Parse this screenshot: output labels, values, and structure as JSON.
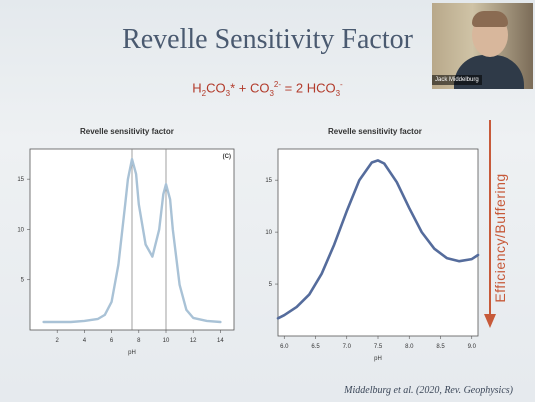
{
  "slide": {
    "title": "Revelle Sensitivity Factor",
    "equation": {
      "h2co3": "H",
      "h2co3_sub": "2",
      "h2co3_mid": "CO",
      "h2co3_sub2": "3",
      "star": "*",
      "plus": " + CO",
      "co3_sub": "3",
      "co3_sup": "2-",
      "equals": " = 2 HCO",
      "hco3_sub": "3",
      "hco3_sup": "-"
    },
    "side_label": "Efficiency/Buffering",
    "citation": "Middelburg et al. (2020, Rev. Geophysics)"
  },
  "webcam": {
    "name": "Jack Middelburg"
  },
  "colors": {
    "title": "#4a5a70",
    "equation": "#b23a2a",
    "curve_left": "#a9c2d6",
    "curve_right": "#556c9c",
    "arrow": "#c75a3a"
  },
  "chart_data": [
    {
      "type": "line",
      "title": "Revelle sensitivity factor",
      "panel_label": "(C)",
      "xlabel": "pH",
      "ylabel": "",
      "xlim": [
        0,
        15
      ],
      "ylim": [
        0,
        18
      ],
      "x_ticks": [
        2,
        4,
        6,
        8,
        10,
        12,
        14
      ],
      "y_ticks": [
        5,
        10,
        15
      ],
      "vlines": [
        7.5,
        10
      ],
      "series": [
        {
          "x": [
            1,
            2,
            3,
            4,
            5,
            5.5,
            6,
            6.5,
            7,
            7.2,
            7.5,
            7.8,
            8,
            8.5,
            9,
            9.5,
            9.8,
            10,
            10.3,
            10.5,
            11,
            11.5,
            12,
            13,
            14
          ],
          "y": [
            0.8,
            0.8,
            0.8,
            0.9,
            1.1,
            1.5,
            2.8,
            6.5,
            12.5,
            15.0,
            17.0,
            15.5,
            12.5,
            8.5,
            7.3,
            10.0,
            13.5,
            14.5,
            13.0,
            10.0,
            4.5,
            2.0,
            1.2,
            0.9,
            0.8
          ]
        }
      ]
    },
    {
      "type": "line",
      "title": "Revelle sensitivity factor",
      "xlabel": "pH",
      "ylabel": "",
      "xlim": [
        5.9,
        9.1
      ],
      "ylim": [
        0,
        18
      ],
      "x_ticks": [
        6.0,
        6.5,
        7.0,
        7.5,
        8.0,
        8.5,
        9.0
      ],
      "y_ticks": [
        5,
        10,
        15
      ],
      "series": [
        {
          "x": [
            5.9,
            6.0,
            6.2,
            6.4,
            6.6,
            6.8,
            7.0,
            7.2,
            7.4,
            7.5,
            7.6,
            7.8,
            8.0,
            8.2,
            8.4,
            8.6,
            8.8,
            9.0,
            9.1
          ],
          "y": [
            1.7,
            2.0,
            2.8,
            4.0,
            6.0,
            8.8,
            12.0,
            15.0,
            16.7,
            16.9,
            16.6,
            14.8,
            12.3,
            10.0,
            8.4,
            7.5,
            7.2,
            7.4,
            7.8
          ]
        }
      ]
    }
  ]
}
